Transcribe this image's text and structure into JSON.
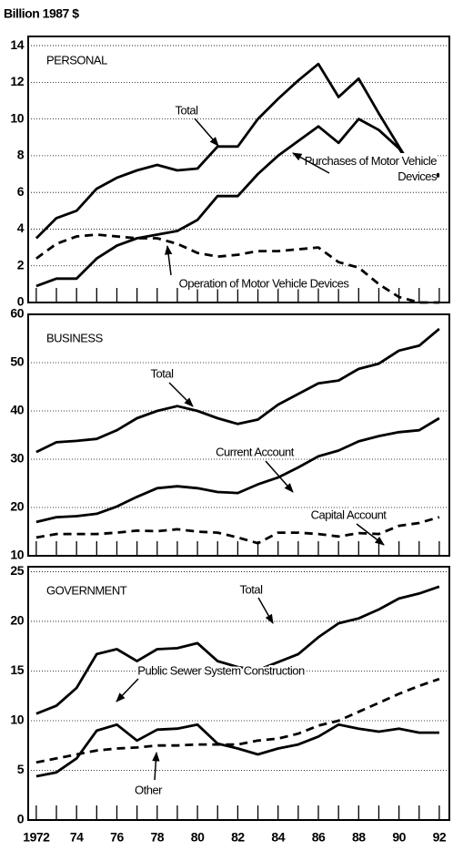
{
  "unit_label": "Billion 1987 $",
  "chart_data": [
    {
      "type": "line",
      "title": "PERSONAL",
      "x": [
        1972,
        1973,
        1974,
        1975,
        1976,
        1977,
        1978,
        1979,
        1980,
        1981,
        1982,
        1983,
        1984,
        1985,
        1986,
        1987,
        1988,
        1989,
        1990,
        1991,
        1992
      ],
      "xlim": [
        1971.6,
        1992.5
      ],
      "ylim": [
        0,
        14.5
      ],
      "yticks": [
        0,
        2,
        4,
        6,
        8,
        10,
        12,
        14
      ],
      "grid": true,
      "series": [
        {
          "name": "Total",
          "color": "#000000",
          "dashed": false,
          "values": [
            3.5,
            4.6,
            5.0,
            6.2,
            6.8,
            7.2,
            7.5,
            7.2,
            7.3,
            8.5,
            8.5,
            10.0,
            11.1,
            12.1,
            13.0,
            11.2,
            12.2,
            10.3,
            8.5,
            6.7,
            6.9
          ]
        },
        {
          "name": "Purchases of Motor Vehicle Devices",
          "color": "#000000",
          "dashed": false,
          "values": [
            0.9,
            1.3,
            1.3,
            2.4,
            3.1,
            3.5,
            3.7,
            3.9,
            4.5,
            5.8,
            5.8,
            7.0,
            8.0,
            8.8,
            9.6,
            8.7,
            10.0,
            9.4,
            8.4,
            6.7,
            7.0
          ]
        },
        {
          "name": "Operation of Motor Vehicle Devices",
          "color": "#000000",
          "dashed": true,
          "values": [
            2.4,
            3.2,
            3.6,
            3.7,
            3.6,
            3.5,
            3.5,
            3.2,
            2.7,
            2.5,
            2.6,
            2.8,
            2.8,
            2.9,
            3.0,
            2.2,
            1.9,
            1.0,
            0.3,
            0,
            0
          ]
        }
      ]
    },
    {
      "type": "line",
      "title": "BUSINESS",
      "x": [
        1972,
        1973,
        1974,
        1975,
        1976,
        1977,
        1978,
        1979,
        1980,
        1981,
        1982,
        1983,
        1984,
        1985,
        1986,
        1987,
        1988,
        1989,
        1990,
        1991,
        1992
      ],
      "xlim": [
        1971.6,
        1992.5
      ],
      "ylim": [
        10,
        60
      ],
      "yticks": [
        10,
        20,
        30,
        40,
        50,
        60
      ],
      "grid": true,
      "series": [
        {
          "name": "Total",
          "color": "#000000",
          "dashed": false,
          "values": [
            31.5,
            33.5,
            33.8,
            34.2,
            36.0,
            38.5,
            40.0,
            41.0,
            40.0,
            38.5,
            37.3,
            38.2,
            41.3,
            43.5,
            45.7,
            46.3,
            48.7,
            49.8,
            52.5,
            53.5,
            57.0
          ]
        },
        {
          "name": "Current Account",
          "color": "#000000",
          "dashed": false,
          "values": [
            17.0,
            18.0,
            18.2,
            18.7,
            20.2,
            22.2,
            24.0,
            24.4,
            24.0,
            23.2,
            23.0,
            24.8,
            26.2,
            28.3,
            30.6,
            31.8,
            33.7,
            34.8,
            35.6,
            36.0,
            38.5
          ]
        },
        {
          "name": "Capital Account",
          "color": "#000000",
          "dashed": true,
          "values": [
            13.8,
            14.5,
            14.5,
            14.5,
            14.8,
            15.2,
            15.1,
            15.5,
            15.0,
            14.8,
            13.8,
            12.6,
            14.8,
            14.8,
            14.5,
            14.0,
            14.7,
            14.5,
            16.2,
            16.8,
            18.0
          ]
        }
      ]
    },
    {
      "type": "line",
      "title": "GOVERNMENT",
      "x": [
        1972,
        1973,
        1974,
        1975,
        1976,
        1977,
        1978,
        1979,
        1980,
        1981,
        1982,
        1983,
        1984,
        1985,
        1986,
        1987,
        1988,
        1989,
        1990,
        1991,
        1992
      ],
      "xlim": [
        1971.6,
        1992.5
      ],
      "ylim": [
        0,
        25.5
      ],
      "yticks": [
        0,
        5,
        10,
        15,
        20,
        25
      ],
      "grid": true,
      "xticks": [
        {
          "value": 1972,
          "label": "1972"
        },
        {
          "value": 1974,
          "label": "74"
        },
        {
          "value": 1976,
          "label": "76"
        },
        {
          "value": 1978,
          "label": "78"
        },
        {
          "value": 1980,
          "label": "80"
        },
        {
          "value": 1982,
          "label": "82"
        },
        {
          "value": 1984,
          "label": "84"
        },
        {
          "value": 1986,
          "label": "86"
        },
        {
          "value": 1988,
          "label": "88"
        },
        {
          "value": 1990,
          "label": "90"
        },
        {
          "value": 1992,
          "label": "92"
        }
      ],
      "series": [
        {
          "name": "Total",
          "color": "#000000",
          "dashed": false,
          "values": [
            10.7,
            11.5,
            13.3,
            16.7,
            17.2,
            16.0,
            17.2,
            17.3,
            17.8,
            16.0,
            15.4,
            15.1,
            15.9,
            16.7,
            18.4,
            19.8,
            20.3,
            21.2,
            22.3,
            22.8,
            23.5
          ]
        },
        {
          "name": "Public Sewer System Construction",
          "color": "#000000",
          "dashed": false,
          "values": [
            4.4,
            4.8,
            6.2,
            9.0,
            9.6,
            8.0,
            9.1,
            9.2,
            9.6,
            7.7,
            7.2,
            6.6,
            7.2,
            7.6,
            8.4,
            9.6,
            9.2,
            8.9,
            9.2,
            8.8,
            8.8
          ]
        },
        {
          "name": "Other",
          "color": "#000000",
          "dashed": true,
          "values": [
            5.8,
            6.2,
            6.6,
            7.0,
            7.2,
            7.3,
            7.5,
            7.5,
            7.6,
            7.6,
            7.6,
            8.0,
            8.2,
            8.7,
            9.5,
            10.0,
            10.9,
            11.8,
            12.7,
            13.5,
            14.2
          ]
        }
      ]
    }
  ]
}
